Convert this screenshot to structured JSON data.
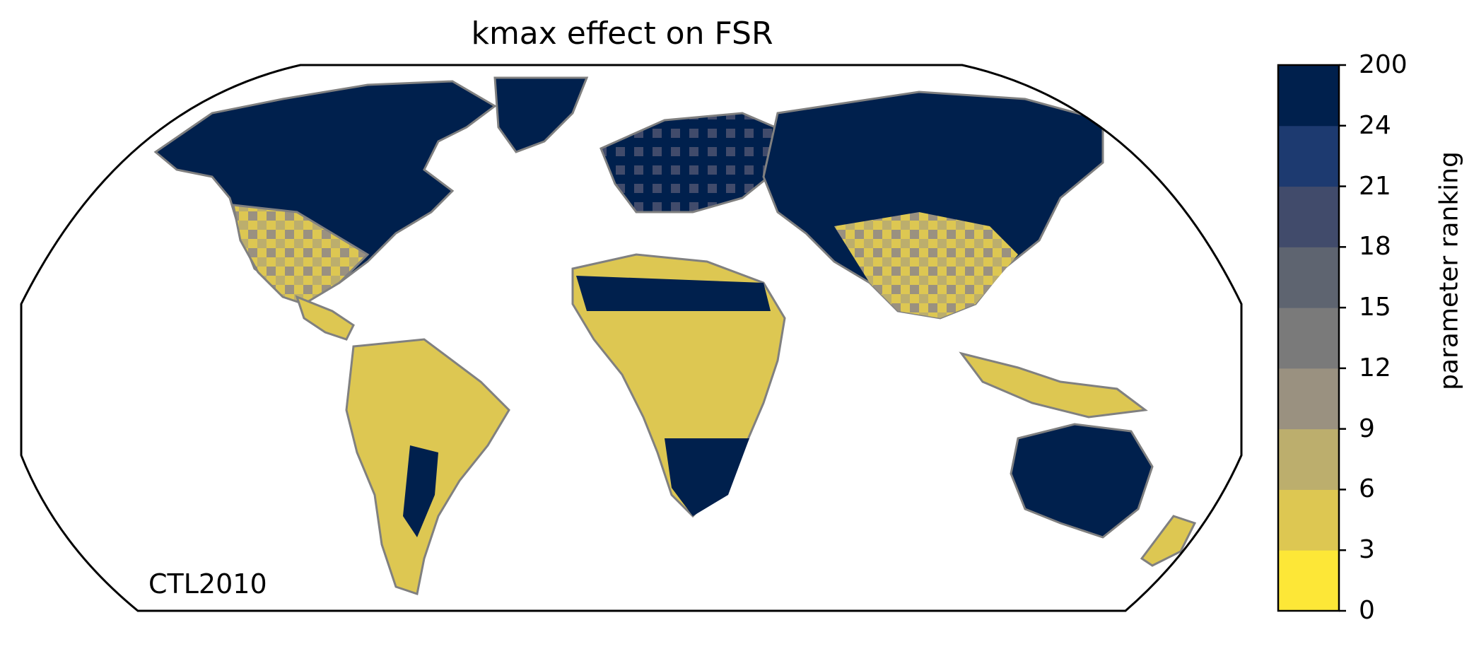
{
  "title": "kmax effect on FSR",
  "panel_label": "CTL2010",
  "colorbar": {
    "label": "parameter ranking",
    "ticks": [
      "0",
      "3",
      "6",
      "9",
      "12",
      "15",
      "18",
      "21",
      "24",
      "200"
    ],
    "colors": [
      "#fde737",
      "#ddc752",
      "#bcae6d",
      "#9a9180",
      "#7a7a7a",
      "#5e6470",
      "#414b6b",
      "#1d3a70",
      "#00204d"
    ]
  },
  "map": {
    "projection": "robinson",
    "coastline_color": "#808080",
    "land_colors": {
      "dominant_low": "#ddc752",
      "dominant_high": "#00204d"
    }
  }
}
